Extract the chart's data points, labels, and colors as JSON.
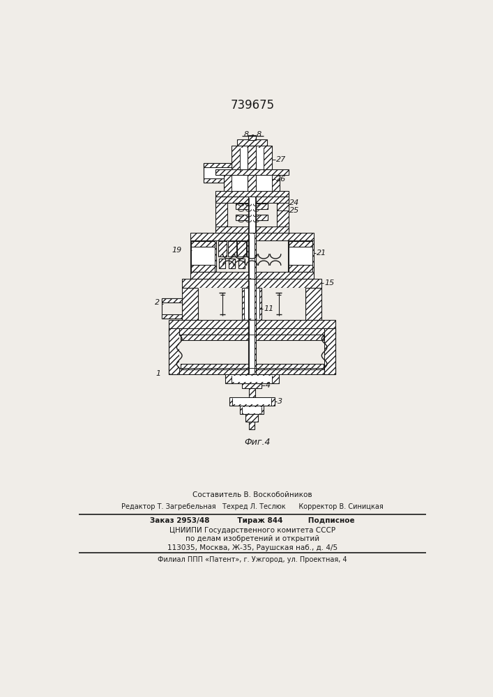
{
  "title": "739675",
  "figure_label": "Фиг.4",
  "section_label": "8 - 8",
  "bg_color": "#f0ede8",
  "paper_color": "#f0ede8",
  "line_color": "#1a1a1a",
  "footer_line1": "Составитель В. Воскобойников",
  "footer_line2": "Редактор Т. Загребельная   Техред Л. Теслюк      Корректор В. Синицкая",
  "footer_line3": "Заказ 2953/48           Тираж 844          Подписное",
  "footer_line4": "ЦНИИПИ Государственного комитета СССР",
  "footer_line5": "по делам изобретений и открытий",
  "footer_line6": "113035, Москва, Ж-35, Раушская наб., д. 4/5",
  "footer_line7": "Филиал ППП «Патент», г. Ужгород, ул. Проектная, 4"
}
